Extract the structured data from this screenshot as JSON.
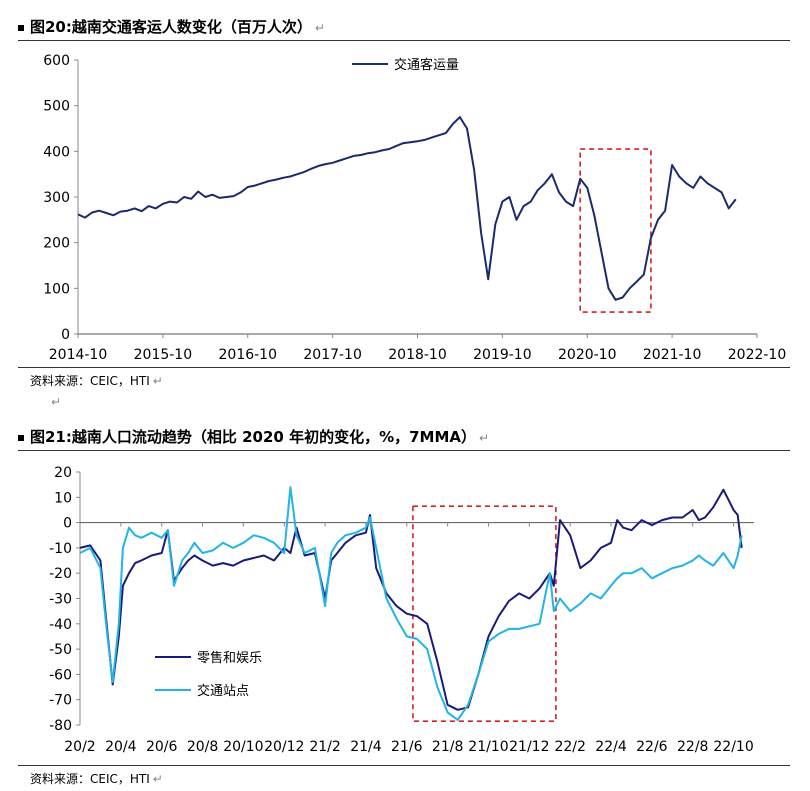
{
  "charts": [
    {
      "title": "图20:越南交通客运人数变化（百万人次）",
      "source": "资料来源：CEIC，HTI",
      "chart_data": {
        "type": "line",
        "title": "图20:越南交通客运人数变化（百万人次）",
        "ylim": [
          0,
          600
        ],
        "yticks": [
          0,
          100,
          200,
          300,
          400,
          500,
          600
        ],
        "xlim": [
          0,
          96
        ],
        "xtick_labels": [
          "2014-10",
          "2015-10",
          "2016-10",
          "2017-10",
          "2018-10",
          "2019-10",
          "2020-10",
          "2021-10",
          "2022-10"
        ],
        "xtick_positions": [
          0,
          12,
          24,
          36,
          48,
          60,
          72,
          84,
          96
        ],
        "highlight_box": {
          "x": [
            71,
            81
          ],
          "y": [
            48,
            405
          ]
        },
        "series": [
          {
            "name": "交通客运量",
            "color": "#1a2b6d",
            "x": [
              0,
              1,
              2,
              3,
              4,
              5,
              6,
              7,
              8,
              9,
              10,
              11,
              12,
              13,
              14,
              15,
              16,
              17,
              18,
              19,
              20,
              21,
              22,
              23,
              24,
              25,
              26,
              27,
              28,
              29,
              30,
              31,
              32,
              33,
              34,
              35,
              36,
              37,
              38,
              39,
              40,
              41,
              42,
              43,
              44,
              45,
              46,
              47,
              48,
              49,
              50,
              51,
              52,
              53,
              54,
              55,
              56,
              57,
              58,
              59,
              60,
              61,
              62,
              63,
              64,
              65,
              66,
              67,
              68,
              69,
              70,
              71,
              72,
              73,
              74,
              75,
              76,
              77,
              78,
              79,
              80,
              81,
              82,
              83,
              84,
              85,
              86,
              87,
              88,
              89,
              90,
              91,
              92,
              93
            ],
            "y": [
              262,
              255,
              266,
              270,
              265,
              260,
              268,
              270,
              275,
              269,
              280,
              275,
              285,
              290,
              288,
              300,
              296,
              312,
              300,
              305,
              298,
              300,
              302,
              310,
              322,
              325,
              330,
              335,
              338,
              342,
              345,
              350,
              355,
              362,
              368,
              372,
              375,
              380,
              385,
              390,
              392,
              396,
              398,
              402,
              405,
              412,
              418,
              420,
              422,
              425,
              430,
              435,
              440,
              460,
              475,
              450,
              360,
              220,
              120,
              240,
              290,
              300,
              250,
              280,
              290,
              315,
              330,
              350,
              310,
              290,
              280,
              340,
              320,
              260,
              180,
              100,
              75,
              80,
              100,
              115,
              130,
              210,
              250,
              270,
              370,
              345,
              330,
              320,
              345,
              330,
              320,
              310,
              275,
              295
            ]
          }
        ]
      }
    },
    {
      "title": "图21:越南人口流动趋势（相比 2020 年初的变化，%，7MMA）",
      "source": "资料来源：CEIC，HTI",
      "chart_data": {
        "type": "line",
        "title": "图21:越南人口流动趋势（相比 2020 年初的变化，%，7MMA）",
        "ylim": [
          -80,
          20
        ],
        "yticks": [
          20,
          10,
          0,
          -10,
          -20,
          -30,
          -40,
          -50,
          -60,
          -70,
          -80
        ],
        "xlim": [
          0,
          33
        ],
        "xtick_labels": [
          "20/2",
          "20/4",
          "20/6",
          "20/8",
          "20/10",
          "20/12",
          "21/2",
          "21/4",
          "21/6",
          "21/8",
          "21/10",
          "21/12",
          "22/2",
          "22/4",
          "22/6",
          "22/8",
          "22/10"
        ],
        "xtick_positions": [
          0,
          2,
          4,
          6,
          8,
          10,
          12,
          14,
          16,
          18,
          20,
          22,
          24,
          26,
          28,
          30,
          32
        ],
        "highlight_box": {
          "x": [
            16.3,
            23.3
          ],
          "y": [
            -78.5,
            6.5
          ]
        },
        "series": [
          {
            "name": "零售和娱乐",
            "color": "#1a1a7a",
            "x": [
              0,
              0.5,
              1,
              1.3,
              1.6,
              1.9,
              2.1,
              2.4,
              2.7,
              3,
              3.5,
              4,
              4.3,
              4.6,
              5,
              5.3,
              5.6,
              6,
              6.5,
              7,
              7.5,
              8,
              8.5,
              9,
              9.5,
              10,
              10.3,
              10.6,
              11,
              11.5,
              12,
              12.3,
              12.6,
              13,
              13.5,
              14,
              14.2,
              14.5,
              15,
              15.5,
              16,
              16.5,
              17,
              17.5,
              18,
              18.5,
              19,
              19.5,
              20,
              20.5,
              21,
              21.5,
              22,
              22.5,
              23,
              23.2,
              23.5,
              24,
              24.5,
              25,
              25.5,
              26,
              26.3,
              26.6,
              27,
              27.5,
              28,
              28.5,
              29,
              29.5,
              30,
              30.3,
              30.6,
              31,
              31.5,
              32,
              32.2,
              32.4
            ],
            "y": [
              -10,
              -9,
              -15,
              -40,
              -64,
              -45,
              -25,
              -20,
              -16,
              -15,
              -13,
              -12,
              -3,
              -23,
              -18,
              -15,
              -13,
              -15,
              -17,
              -16,
              -17,
              -15,
              -14,
              -13,
              -15,
              -10,
              -12,
              -2,
              -13,
              -12,
              -30,
              -15,
              -12,
              -8,
              -5,
              -4,
              3,
              -18,
              -28,
              -33,
              -36,
              -37,
              -40,
              -55,
              -72,
              -74,
              -73,
              -60,
              -45,
              -37,
              -31,
              -28,
              -30,
              -26,
              -20,
              -25,
              1,
              -5,
              -18,
              -15,
              -10,
              -8,
              1,
              -2,
              -3,
              1,
              -1,
              1,
              2,
              2,
              5,
              1,
              2,
              6,
              13,
              5,
              3,
              -10
            ]
          },
          {
            "name": "交通站点",
            "color": "#22b4e6",
            "x": [
              0,
              0.5,
              1,
              1.3,
              1.6,
              1.9,
              2.1,
              2.4,
              2.7,
              3,
              3.5,
              4,
              4.3,
              4.6,
              5,
              5.3,
              5.6,
              6,
              6.5,
              7,
              7.5,
              8,
              8.5,
              9,
              9.5,
              10,
              10.3,
              10.6,
              11,
              11.5,
              12,
              12.3,
              12.6,
              13,
              13.5,
              14,
              14.2,
              14.5,
              15,
              15.5,
              16,
              16.5,
              17,
              17.5,
              18,
              18.5,
              19,
              19.5,
              20,
              20.5,
              21,
              21.5,
              22,
              22.5,
              23,
              23.2,
              23.5,
              24,
              24.5,
              25,
              25.5,
              26,
              26.3,
              26.6,
              27,
              27.5,
              28,
              28.5,
              29,
              29.5,
              30,
              30.3,
              30.6,
              31,
              31.5,
              32,
              32.2,
              32.4
            ],
            "y": [
              -12,
              -10,
              -18,
              -42,
              -63,
              -40,
              -10,
              -2,
              -5,
              -6,
              -4,
              -6,
              -3,
              -25,
              -15,
              -12,
              -8,
              -12,
              -11,
              -8,
              -10,
              -8,
              -5,
              -6,
              -8,
              -12,
              14,
              -5,
              -12,
              -10,
              -33,
              -12,
              -8,
              -5,
              -4,
              -2,
              2,
              -10,
              -30,
              -38,
              -45,
              -46,
              -50,
              -65,
              -75,
              -78,
              -72,
              -60,
              -47,
              -44,
              -42,
              -42,
              -41,
              -40,
              -20,
              -35,
              -30,
              -35,
              -32,
              -28,
              -30,
              -25,
              -22,
              -20,
              -20,
              -18,
              -22,
              -20,
              -18,
              -17,
              -15,
              -13,
              -15,
              -17,
              -12,
              -18,
              -13,
              -5
            ]
          }
        ]
      }
    }
  ],
  "return_mark": "↵"
}
